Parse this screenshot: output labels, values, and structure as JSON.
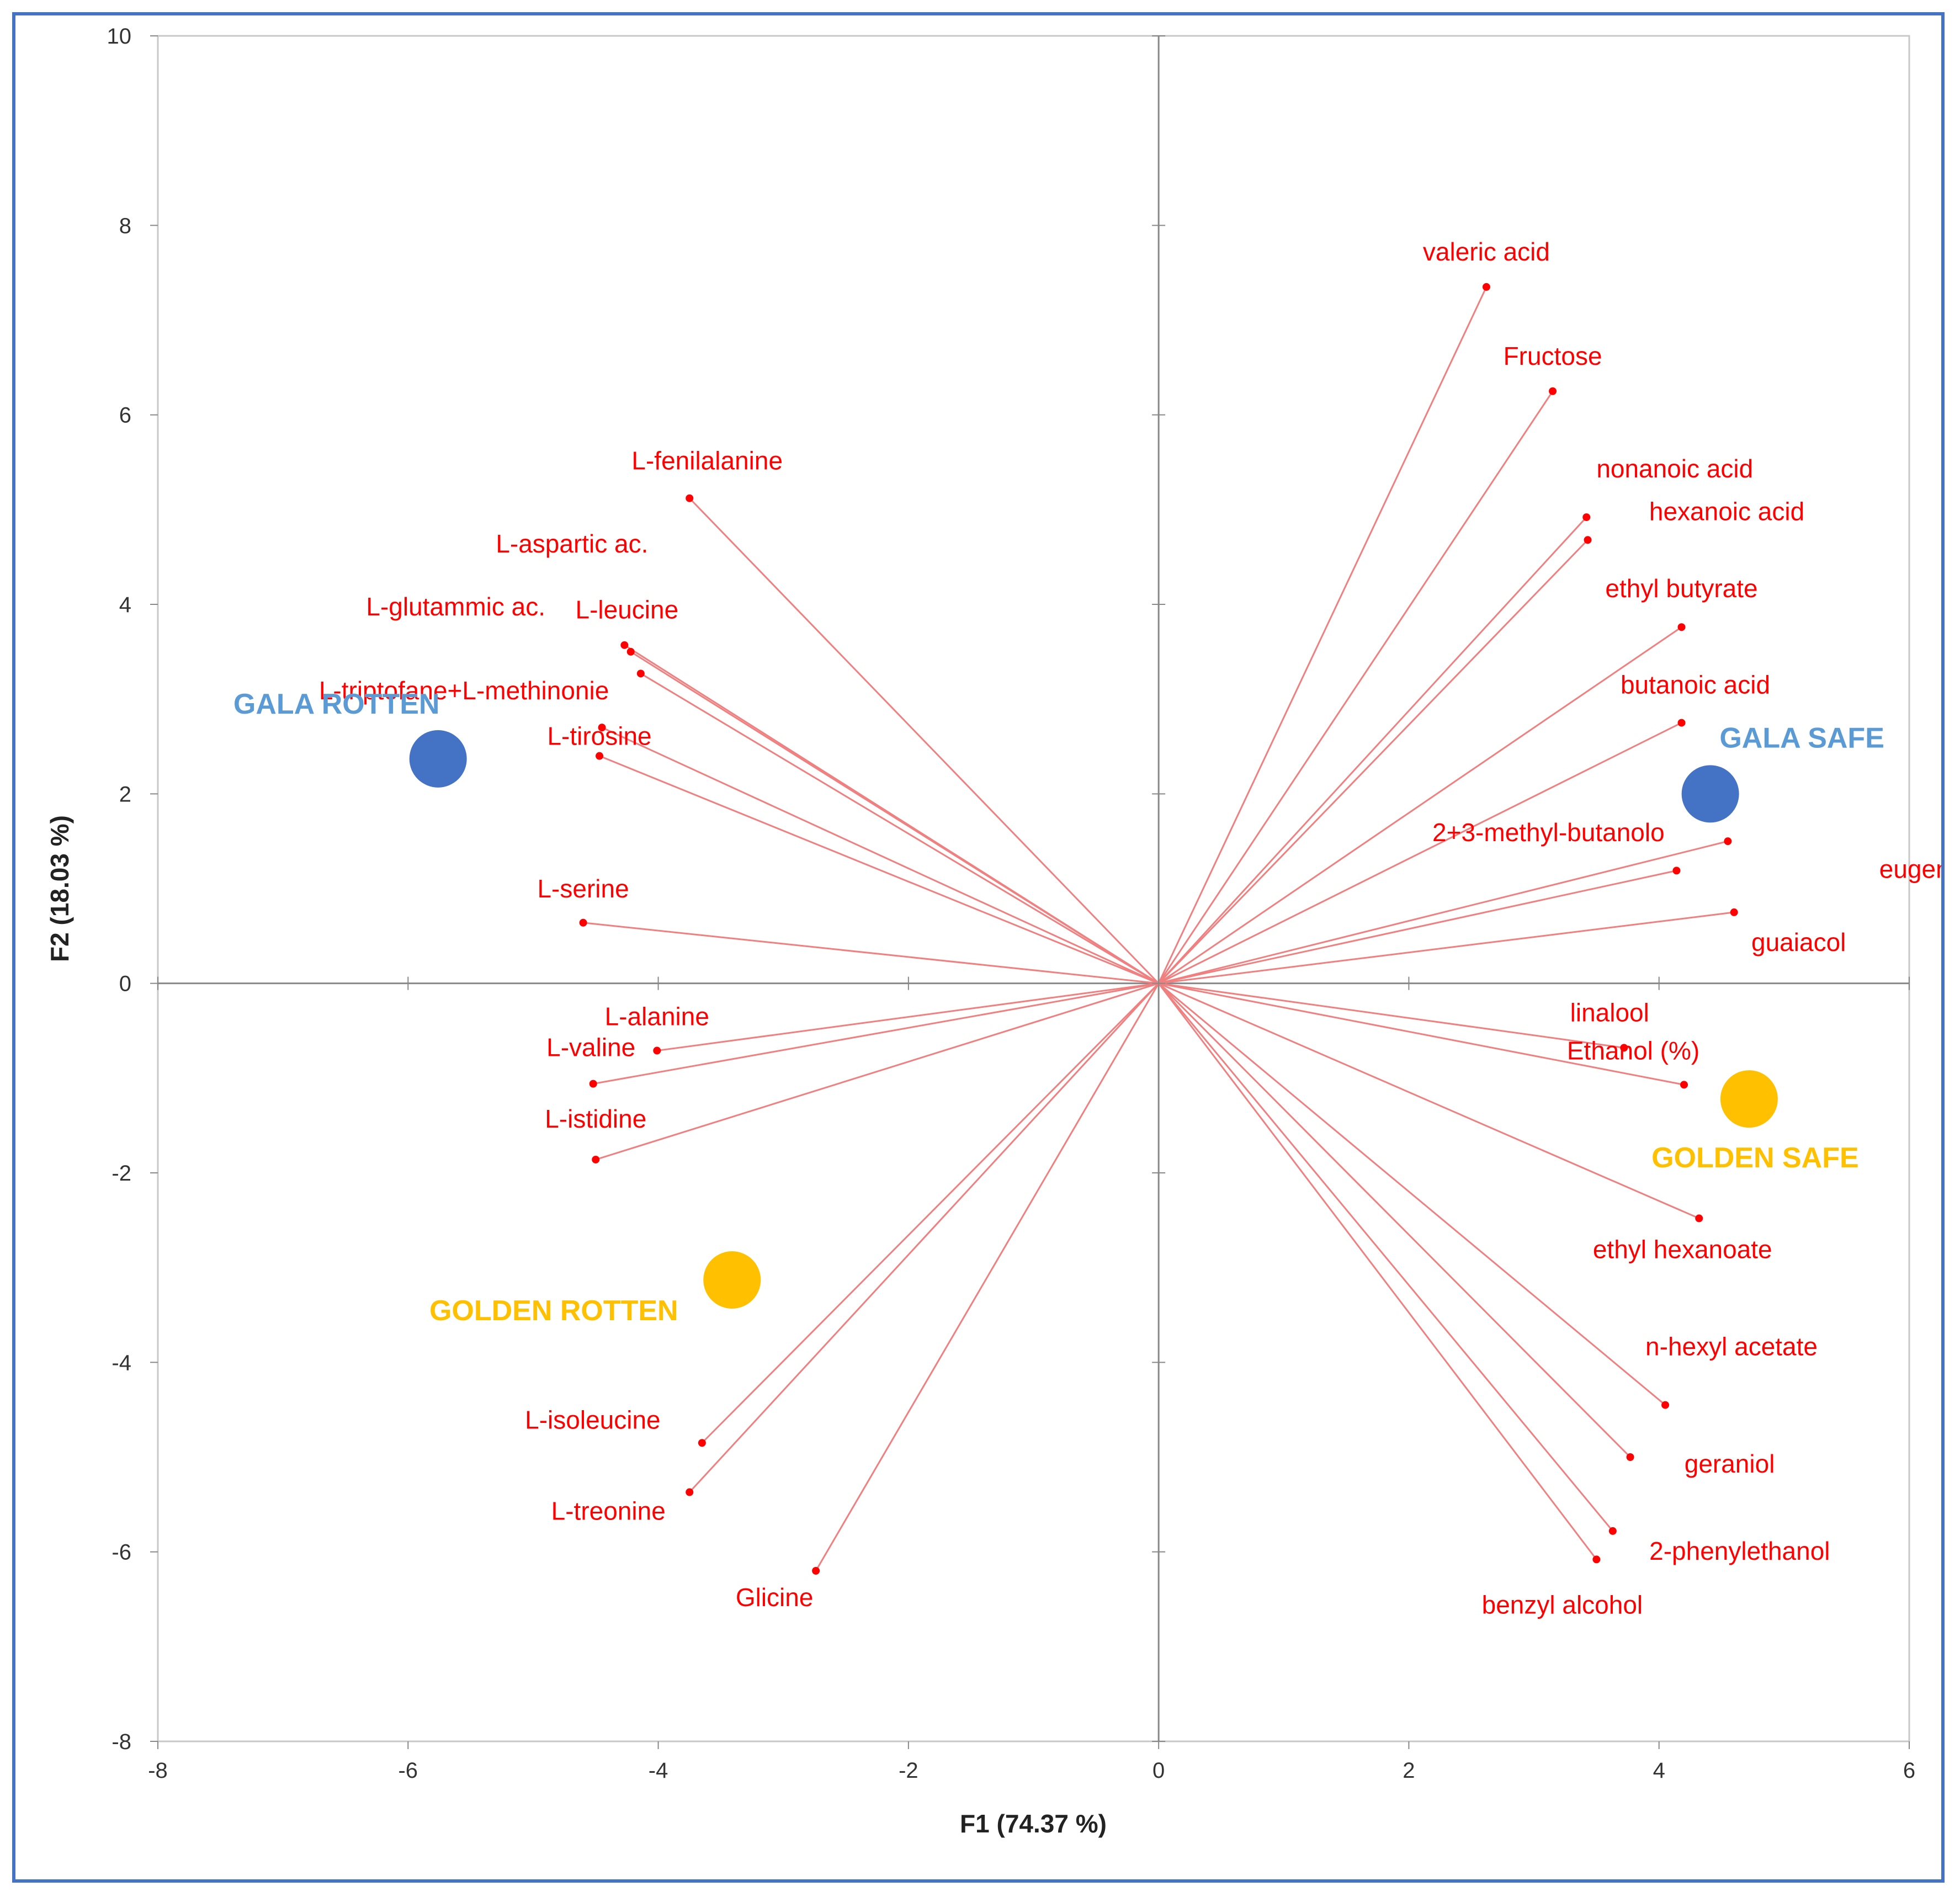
{
  "chart_data": {
    "type": "scatter",
    "subtype": "pca-biplot",
    "title": "",
    "xlabel": "F1 (74.37 %)",
    "ylabel": "F2 (18.03 %)",
    "xlim": [
      -8,
      6
    ],
    "ylim": [
      -8,
      10
    ],
    "xticks": [
      -8,
      -6,
      -4,
      -2,
      0,
      2,
      4,
      6
    ],
    "yticks": [
      -8,
      -6,
      -4,
      -2,
      0,
      2,
      4,
      6,
      8,
      10
    ],
    "xtick_labels": [
      "-8",
      "-6",
      "-4",
      "-2",
      "0",
      "2",
      "4",
      "6"
    ],
    "ytick_labels": [
      "-8",
      "-6",
      "-4",
      "-2",
      "0",
      "2",
      "4",
      "6",
      "8",
      "10"
    ],
    "colors": {
      "vector": "#ff0000",
      "vector_line": "#f08080",
      "gala": "#4472c4",
      "gala_label": "#5b9bd5",
      "golden": "#ffc000",
      "axis": "#888888",
      "frame": "#4472c4"
    },
    "variables": [
      {
        "name": "valeric acid",
        "x": 2.62,
        "y": 7.35
      },
      {
        "name": "Fructose",
        "x": 3.15,
        "y": 6.25
      },
      {
        "name": "nonanoic acid",
        "x": 3.42,
        "y": 4.92
      },
      {
        "name": "hexanoic acid",
        "x": 3.43,
        "y": 4.68
      },
      {
        "name": "ethyl butyrate",
        "x": 4.18,
        "y": 3.76
      },
      {
        "name": "butanoic acid",
        "x": 4.18,
        "y": 2.75
      },
      {
        "name": "2+3-methyl-butanolo",
        "x": 4.55,
        "y": 1.5
      },
      {
        "name": "eugenolo",
        "x": 4.14,
        "y": 1.19
      },
      {
        "name": "guaiacol",
        "x": 4.6,
        "y": 0.75
      },
      {
        "name": "linalool",
        "x": 3.72,
        "y": -0.68
      },
      {
        "name": "Ethanol (%)",
        "x": 4.2,
        "y": -1.07
      },
      {
        "name": "ethyl hexanoate",
        "x": 4.32,
        "y": -2.48
      },
      {
        "name": "n-hexyl acetate",
        "x": 4.05,
        "y": -4.45
      },
      {
        "name": "geraniol",
        "x": 3.77,
        "y": -5.0
      },
      {
        "name": "2-phenylethanol",
        "x": 3.63,
        "y": -5.78
      },
      {
        "name": "benzyl alcohol",
        "x": 3.5,
        "y": -6.08
      },
      {
        "name": "L-fenilalanine",
        "x": -3.75,
        "y": 5.12
      },
      {
        "name": "L-aspartic ac.",
        "x": -4.27,
        "y": 3.57
      },
      {
        "name": "L-glutammic ac.",
        "x": -4.22,
        "y": 3.5
      },
      {
        "name": "L-leucine",
        "x": -4.14,
        "y": 3.27
      },
      {
        "name": "L-triptofane+L-methinonie",
        "x": -4.45,
        "y": 2.7
      },
      {
        "name": "L-tirosine",
        "x": -4.47,
        "y": 2.4
      },
      {
        "name": "L-serine",
        "x": -4.6,
        "y": 0.64
      },
      {
        "name": "L-alanine",
        "x": -4.01,
        "y": -0.71
      },
      {
        "name": "L-valine",
        "x": -4.52,
        "y": -1.06
      },
      {
        "name": "L-istidine",
        "x": -4.5,
        "y": -1.86
      },
      {
        "name": "L-isoleucine",
        "x": -3.65,
        "y": -4.85
      },
      {
        "name": "L-treonine",
        "x": -3.75,
        "y": -5.37
      },
      {
        "name": "Glicine",
        "x": -2.74,
        "y": -6.2
      }
    ],
    "observations": [
      {
        "name": "GALA ROTTEN",
        "x": -5.76,
        "y": 2.37,
        "group": "gala"
      },
      {
        "name": "GALA SAFE",
        "x": 4.41,
        "y": 2.0,
        "group": "gala"
      },
      {
        "name": "GOLDEN SAFE",
        "x": 4.72,
        "y": -1.22,
        "group": "golden"
      },
      {
        "name": "GOLDEN ROTTEN",
        "x": -3.41,
        "y": -3.13,
        "group": "golden"
      }
    ]
  }
}
